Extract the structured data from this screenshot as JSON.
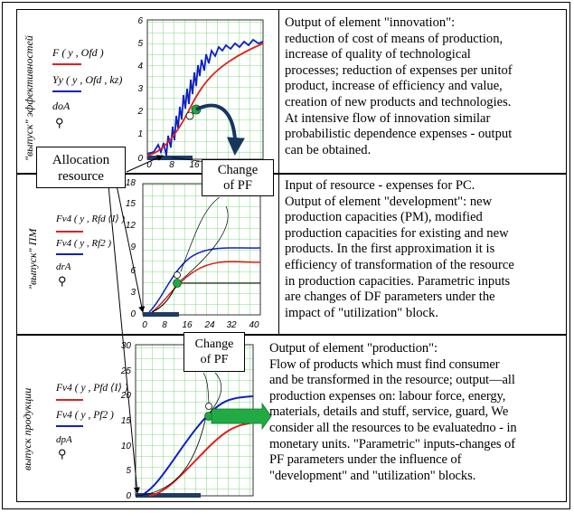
{
  "panels": [
    {
      "id": "innovation",
      "ylabel": "\"выпуск\" эффективностей",
      "legend": [
        {
          "text": "F ( y , Ofd )",
          "color": "#e02020"
        },
        {
          "text": "Yy ( y , Ofd , kz)",
          "color": "#1020c0"
        },
        {
          "text": "doA",
          "color": "#000000"
        }
      ],
      "yticks": [
        "6",
        "5",
        "4",
        "3",
        "2",
        "1",
        "0"
      ],
      "xticks": [
        "0",
        "8",
        "16"
      ],
      "description_lines": [
        "Output of element \"innovation\":",
        "reduction of cost of means of production,",
        "increase of quality of technological",
        "processes; reduction of expenses per unitof",
        "product, increase of efficiency and value,",
        "creation of new products and technologies.",
        "At intensive flow of innovation similar",
        "probabilistic dependence expenses - output",
        "can be obtained."
      ]
    },
    {
      "id": "development",
      "ylabel": "\"выпуск\" ПМ",
      "legend": [
        {
          "text": "Fv4 ( y , Rfd ⟨I⟩ )",
          "color": "#e02020"
        },
        {
          "text": "Fv4 ( y , Rf2 )",
          "color": "#1020c0"
        },
        {
          "text": "drA",
          "color": "#000000"
        }
      ],
      "yticks": [
        "18",
        "15",
        "12",
        "9",
        "6",
        "3",
        "0"
      ],
      "xticks": [
        "0",
        "8",
        "16",
        "24",
        "32",
        "40"
      ],
      "description_lines": [
        "Input of resource - expenses for PC.",
        "Output of element \"development\": new",
        "production capacities (PM), modified",
        "production capacities for existing and new",
        "products. In the first approximation it is",
        "efficiency of transformation of the resource",
        "in production capacities. Parametric inputs",
        "are changes of DF parameters under the",
        "impact of \"utilization\" block."
      ]
    },
    {
      "id": "production",
      "ylabel": "выпуск продукции",
      "legend": [
        {
          "text": "Fv4 ( y , Pfd ⟨I⟩ )",
          "color": "#e02020"
        },
        {
          "text": "Fv4 ( y , Pf2 )",
          "color": "#1020c0"
        },
        {
          "text": "dpA",
          "color": "#000000"
        }
      ],
      "yticks": [
        "30",
        "25",
        "20",
        "15",
        "10",
        "5",
        "0"
      ],
      "description_lines": [
        "Output of element \"production\":",
        "Flow of products which must find consumer",
        "and be transformed in the resource; output—all",
        "production expenses on: labour force, energy,",
        "materials, details and stuff, service, guard, We",
        "consider all the resources to be evaluatedпо - in",
        "monetary units. \"Parametric\" inputs-changes of",
        "PF parameters under the influence of",
        "\"development\" and \"utilization\" blocks."
      ]
    }
  ],
  "allocation_box": {
    "line1": "Allocation",
    "line2": "resource"
  },
  "change_box_1": {
    "line1": "Change",
    "line2": "of PF"
  },
  "change_box_2": {
    "line1": "Change",
    "line2": "of PF"
  }
}
